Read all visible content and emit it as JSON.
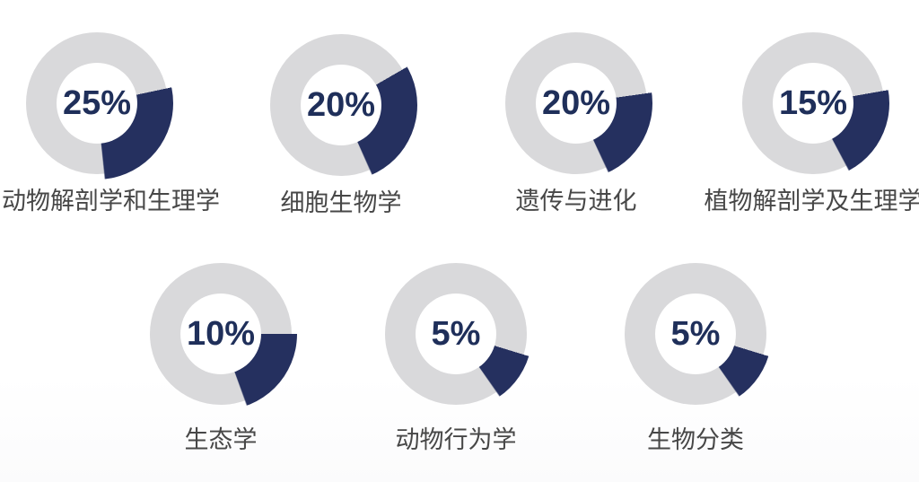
{
  "page": {
    "background": "#ffffff"
  },
  "chart_data": {
    "type": "pie",
    "subtype": "donut-grid",
    "title": "",
    "unit": "%",
    "legend_position": "none",
    "layout": {
      "rows": 2,
      "cols_row1": 4,
      "cols_row2": 3
    },
    "colors": {
      "segment": "#25305f",
      "ring_track": "#d9d9db",
      "value_text": "#1f2f5a",
      "label_text": "#474747"
    },
    "categories": [
      "动物解剖学和生理学",
      "细胞生物学",
      "遗传与进化",
      "植物解剖学及生理学",
      "生态学",
      "动物行为学",
      "生物分类"
    ],
    "values": [
      25,
      20,
      20,
      15,
      10,
      5,
      5
    ],
    "items": [
      {
        "label": "动物解剖学和生理学",
        "value": 25,
        "value_label": "25%",
        "arc_start_deg": 78,
        "arc_end_deg": 174
      },
      {
        "label": "细胞生物学",
        "value": 20,
        "value_label": "20%",
        "arc_start_deg": 60,
        "arc_end_deg": 156
      },
      {
        "label": "遗传与进化",
        "value": 20,
        "value_label": "20%",
        "arc_start_deg": 82,
        "arc_end_deg": 155
      },
      {
        "label": "植物解剖学及生理学",
        "value": 15,
        "value_label": "15%",
        "arc_start_deg": 80,
        "arc_end_deg": 152
      },
      {
        "label": "生态学",
        "value": 10,
        "value_label": "10%",
        "arc_start_deg": 90,
        "arc_end_deg": 160
      },
      {
        "label": "动物行为学",
        "value": 5,
        "value_label": "5%",
        "arc_start_deg": 107,
        "arc_end_deg": 145
      },
      {
        "label": "生物分类",
        "value": 5,
        "value_label": "5%",
        "arc_start_deg": 107,
        "arc_end_deg": 145
      }
    ]
  }
}
